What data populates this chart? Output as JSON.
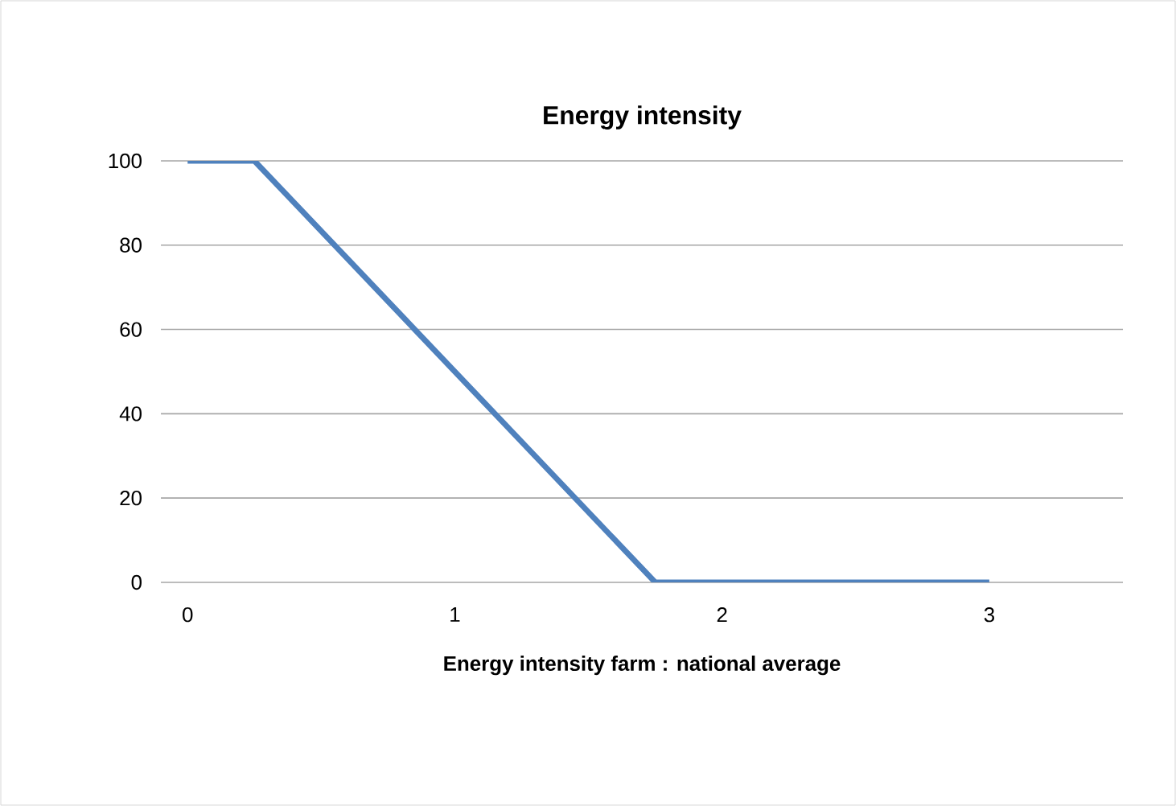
{
  "chart_data": {
    "type": "line",
    "title": "Energy intensity",
    "xlabel": "Energy intensity farm : national average",
    "x": [
      0,
      0.25,
      1.75,
      3
    ],
    "series": [
      {
        "color": "#4f81bd",
        "values": [
          100,
          100,
          0,
          0
        ]
      }
    ],
    "xlim": [
      -0.1,
      3.5
    ],
    "ylim": [
      0,
      100
    ],
    "xticks": [
      0,
      1,
      2,
      3
    ],
    "yticks": [
      0,
      20,
      40,
      60,
      80,
      100
    ],
    "grid": "y",
    "marker": "none",
    "line_style": "solid"
  }
}
